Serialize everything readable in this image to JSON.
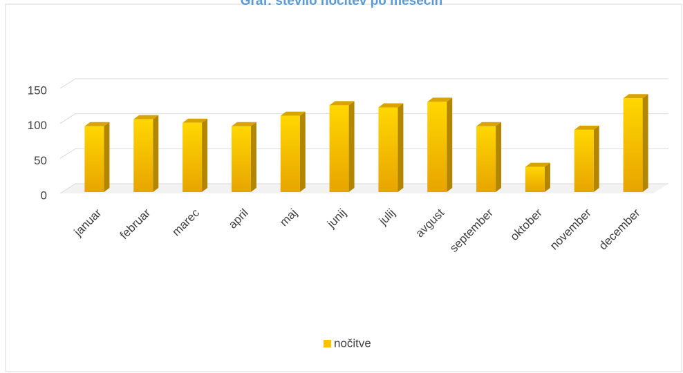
{
  "chart_data": {
    "type": "bar",
    "title": "Graf: število nočitev po mesecih",
    "categories": [
      "januar",
      "februar",
      "marec",
      "april",
      "maj",
      "junij",
      "julij",
      "avgust",
      "september",
      "oktober",
      "november",
      "december"
    ],
    "series": [
      {
        "name": "nočitve",
        "color": "#ffc000",
        "values": [
          90,
          100,
          95,
          90,
          105,
          120,
          117,
          125,
          90,
          32,
          85,
          130
        ]
      }
    ],
    "ylim": [
      0,
      150
    ],
    "yticks": [
      0,
      50,
      100,
      150
    ],
    "grid": true,
    "legend": "bottom"
  }
}
